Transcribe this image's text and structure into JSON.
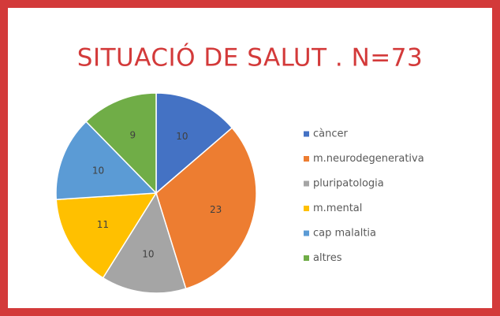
{
  "chart_data": {
    "type": "pie",
    "title": "SITUACIÓ DE SALUT . N=73",
    "categories": [
      "càncer",
      "m.neurodegenerativa",
      "pluripatologia",
      "m.mental",
      "cap malaltia",
      "altres"
    ],
    "values": [
      10,
      23,
      10,
      11,
      10,
      9
    ],
    "colors": [
      "#4472c4",
      "#ed7d31",
      "#a5a5a5",
      "#ffc000",
      "#5b9bd5",
      "#70ad47"
    ],
    "legend": "right"
  }
}
